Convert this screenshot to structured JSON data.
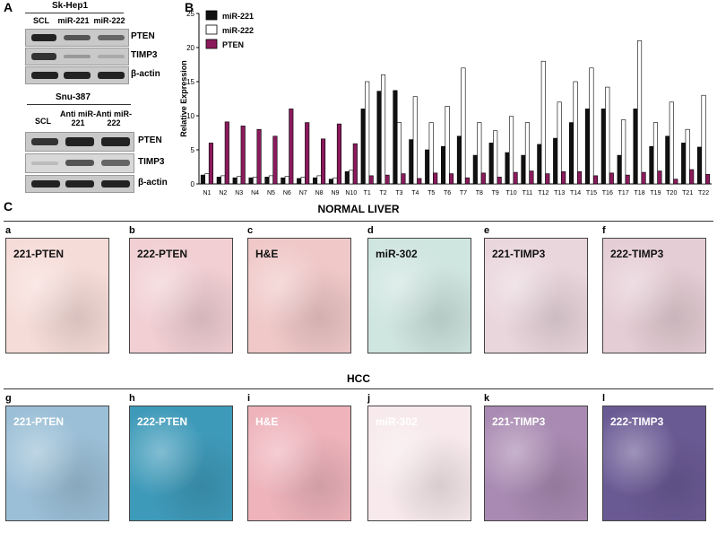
{
  "panelA": {
    "letter": "A",
    "blot1": {
      "title": "Sk-Hep1",
      "lanes": [
        "SCL",
        "miR-221",
        "miR-222"
      ],
      "rows": [
        "PTEN",
        "TIMP3",
        "β-actin"
      ]
    },
    "blot2": {
      "title": "Snu-387",
      "lanes": [
        "SCL",
        "Anti miR-221",
        "Anti miR-222"
      ],
      "rows": [
        "PTEN",
        "TIMP3",
        "β-actin"
      ]
    }
  },
  "panelB": {
    "letter": "B"
  },
  "chart_data": {
    "type": "bar",
    "ylabel": "Relative Expression",
    "ylim": [
      0,
      25
    ],
    "yticks": [
      0,
      5,
      10,
      15,
      20,
      25
    ],
    "categories": [
      "N1",
      "N2",
      "N3",
      "N4",
      "N5",
      "N6",
      "N7",
      "N8",
      "N9",
      "N10",
      "T1",
      "T2",
      "T3",
      "T4",
      "T5",
      "T6",
      "T7",
      "T8",
      "T9",
      "T10",
      "T11",
      "T12",
      "T13",
      "T14",
      "T15",
      "T16",
      "T17",
      "T18",
      "T19",
      "T20",
      "T21",
      "T22"
    ],
    "series": [
      {
        "name": "miR-221",
        "color": "#111111",
        "values": [
          1.3,
          1.0,
          0.9,
          0.9,
          1.0,
          0.9,
          0.8,
          0.9,
          0.7,
          1.8,
          11,
          13.6,
          13.7,
          6.5,
          5,
          5.5,
          7,
          4.2,
          6,
          4.6,
          4.2,
          5.8,
          6.7,
          9,
          11,
          11,
          4.2,
          11,
          5.5,
          7,
          6,
          5.4
        ]
      },
      {
        "name": "miR-222",
        "color": "#ffffff",
        "values": [
          1.5,
          1.2,
          1.1,
          1.0,
          1.2,
          1.1,
          1.0,
          1.2,
          0.9,
          2.0,
          15,
          16,
          9,
          12.8,
          9,
          11.4,
          17,
          9,
          7.8,
          9.9,
          9,
          18,
          12,
          15,
          17,
          14.2,
          9.4,
          21,
          9,
          12,
          8,
          13
        ]
      },
      {
        "name": "PTEN",
        "color": "#8b1a5c",
        "values": [
          6,
          9.1,
          8.5,
          8,
          7,
          11,
          9,
          6.6,
          8.8,
          5.9,
          1.2,
          1.3,
          1.5,
          0.8,
          1.6,
          1.5,
          0.9,
          1.6,
          1.0,
          1.7,
          1.9,
          1.5,
          1.8,
          1.8,
          1.2,
          1.6,
          1.3,
          1.7,
          1.9,
          0.7,
          2.1,
          1.4
        ]
      }
    ]
  },
  "panelC": {
    "letter": "C",
    "normal_title": "NORMAL LIVER",
    "hcc_title": "HCC",
    "normal_tiles": [
      {
        "letter": "a",
        "label": "221-PTEN",
        "bg": "#f6dcd8"
      },
      {
        "letter": "b",
        "label": "222-PTEN",
        "bg": "#f1cfd3"
      },
      {
        "letter": "c",
        "label": "H&E",
        "bg": "#f0c8c8"
      },
      {
        "letter": "d",
        "label": "miR-302",
        "bg": "#cfe5df"
      },
      {
        "letter": "e",
        "label": "221-TIMP3",
        "bg": "#e9d6dc"
      },
      {
        "letter": "f",
        "label": "222-TIMP3",
        "bg": "#e4cdd4"
      }
    ],
    "hcc_tiles": [
      {
        "letter": "g",
        "label": "221-PTEN",
        "bg": "#9bbfd6"
      },
      {
        "letter": "h",
        "label": "222-PTEN",
        "bg": "#3e9ab9"
      },
      {
        "letter": "i",
        "label": "H&E",
        "bg": "#eeb3bb"
      },
      {
        "letter": "j",
        "label": "miR-302",
        "bg": "#f7e9ec"
      },
      {
        "letter": "k",
        "label": "221-TIMP3",
        "bg": "#a98ab2"
      },
      {
        "letter": "l",
        "label": "222-TIMP3",
        "bg": "#6a5a94"
      }
    ]
  }
}
